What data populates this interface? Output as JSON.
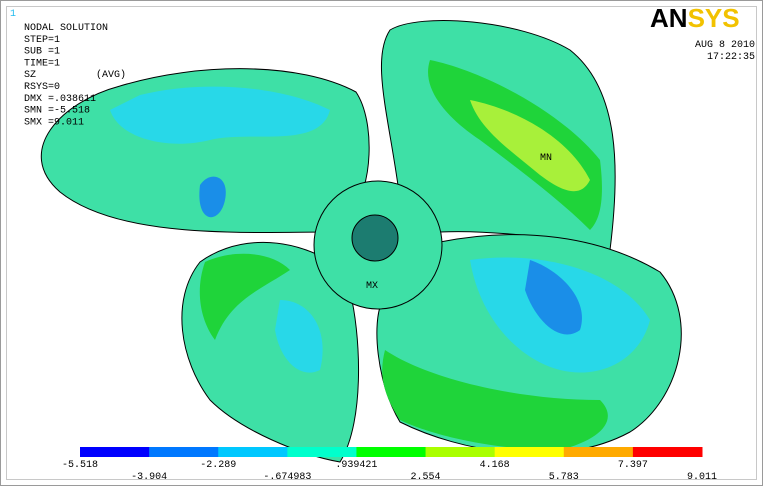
{
  "corner_label": "1",
  "info": [
    "NODAL SOLUTION",
    "STEP=1",
    "SUB =1",
    "TIME=1",
    "SZ",
    "(AVG)",
    "RSYS=0",
    "DMX =.038611",
    "SMN =-5.518",
    "SMX =9.011"
  ],
  "logo": {
    "dark": "AN",
    "light": "SYS"
  },
  "date": "AUG  8 2010",
  "time": "17:22:35",
  "markers": {
    "min": "MN",
    "max": "MX"
  },
  "legend": {
    "colors": [
      "#0000ff",
      "#0078ff",
      "#00c8ff",
      "#00ffcc",
      "#00ff00",
      "#aaff00",
      "#ffff00",
      "#ffaa00",
      "#ff0000"
    ],
    "labels": [
      "-5.518",
      "-3.904",
      "-2.289",
      "-.674983",
      ".939421",
      "2.554",
      "4.168",
      "5.783",
      "7.397",
      "9.011"
    ]
  }
}
